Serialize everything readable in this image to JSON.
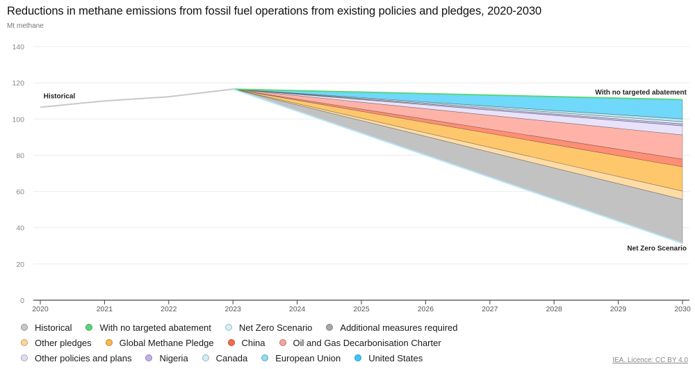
{
  "chart_data": {
    "type": "area",
    "title": "Reductions in methane emissions from fossil fuel operations from existing policies and pledges, 2020-2030",
    "ylabel": "Mt methane",
    "xlabel": "",
    "ylim": [
      0,
      140
    ],
    "xlim": [
      2020,
      2030
    ],
    "y_ticks": [
      0,
      20,
      40,
      60,
      80,
      100,
      120,
      140
    ],
    "x_ticks": [
      2020,
      2021,
      2022,
      2023,
      2024,
      2025,
      2026,
      2027,
      2028,
      2029,
      2030
    ],
    "grid": true,
    "historical": {
      "name": "Historical",
      "color": "#c8c8c8",
      "x": [
        2020,
        2021,
        2022,
        2023
      ],
      "values": [
        106.5,
        110.0,
        112.3,
        116.5
      ]
    },
    "projection_x": [
      2023,
      2030
    ],
    "lines": [
      {
        "name": "With no targeted abatement",
        "color": "#5ad67a",
        "values": [
          116.5,
          110.7
        ]
      },
      {
        "name": "Net Zero Scenario",
        "color": "#b9e6f5",
        "values": [
          116.5,
          31.4
        ]
      }
    ],
    "bands": [
      {
        "name": "United States",
        "color": "#6fd8fb",
        "upper": [
          116.5,
          110.7
        ],
        "lower": [
          116.5,
          100.0
        ]
      },
      {
        "name": "European Union",
        "color": "#b6e6f3",
        "upper": [
          116.5,
          100.0
        ],
        "lower": [
          116.5,
          98.5
        ]
      },
      {
        "name": "Canada",
        "color": "#d7eef5",
        "upper": [
          116.5,
          98.5
        ],
        "lower": [
          116.5,
          97.3
        ]
      },
      {
        "name": "Nigeria",
        "color": "#c6b7ee",
        "upper": [
          116.5,
          97.3
        ],
        "lower": [
          116.5,
          96.2
        ]
      },
      {
        "name": "Other policies and plans",
        "color": "#e9e2fb",
        "upper": [
          116.5,
          96.2
        ],
        "lower": [
          116.5,
          91.2
        ]
      },
      {
        "name": "Oil and Gas Decarbonisation Charter",
        "color": "#ffb3a8",
        "upper": [
          116.5,
          91.2
        ],
        "lower": [
          116.5,
          77.8
        ]
      },
      {
        "name": "China",
        "color": "#ff8e74",
        "upper": [
          116.5,
          77.8
        ],
        "lower": [
          116.5,
          73.6
        ]
      },
      {
        "name": "Global Methane Pledge",
        "color": "#ffc76b",
        "upper": [
          116.5,
          73.6
        ],
        "lower": [
          116.5,
          60.2
        ]
      },
      {
        "name": "Other pledges",
        "color": "#ffdca6",
        "upper": [
          116.5,
          60.2
        ],
        "lower": [
          116.5,
          55.6
        ]
      },
      {
        "name": "Additional measures required",
        "color": "#c2c2c2",
        "upper": [
          116.5,
          55.6
        ],
        "lower": [
          116.5,
          31.4
        ]
      }
    ],
    "annotations": [
      {
        "text": "Historical",
        "x": 2020.05,
        "y": 111.5
      },
      {
        "text": "With no targeted abatement",
        "x": 2030,
        "y": 113.5
      },
      {
        "text": "Net Zero Scenario",
        "x": 2030,
        "y": 27.5
      }
    ],
    "legend": {
      "placement": "bottom",
      "rows": [
        [
          {
            "label": "Historical",
            "color": "#c8c8c8"
          },
          {
            "label": "With no targeted abatement",
            "color": "#5ad67a"
          },
          {
            "label": "Net Zero Scenario",
            "color": "#d4f1fb"
          },
          {
            "label": "Additional measures required",
            "color": "#a8a8a8"
          }
        ],
        [
          {
            "label": "Other pledges",
            "color": "#ffd59a"
          },
          {
            "label": "Global Methane Pledge",
            "color": "#ffb64a"
          },
          {
            "label": "China",
            "color": "#f86a48"
          },
          {
            "label": "Oil and Gas Decarbonisation Charter",
            "color": "#f8a39a"
          }
        ],
        [
          {
            "label": "Other policies and plans",
            "color": "#e6dcfa"
          },
          {
            "label": "Nigeria",
            "color": "#c3aef0"
          },
          {
            "label": "Canada",
            "color": "#d0eef7"
          },
          {
            "label": "European Union",
            "color": "#8fdcf3"
          },
          {
            "label": "United States",
            "color": "#3fc7f2"
          }
        ]
      ]
    }
  },
  "credit": "IEA. Licence: CC BY 4.0"
}
